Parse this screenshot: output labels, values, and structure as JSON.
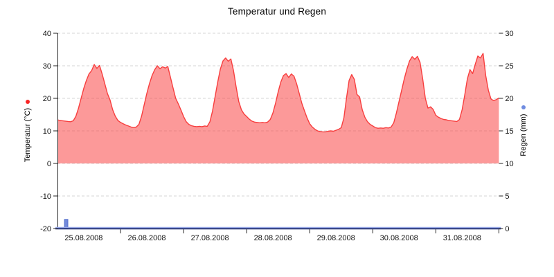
{
  "chart_data": {
    "type": "area+bar",
    "title": "Temperatur und Regen",
    "x_axis": {
      "labels": [
        "25.08.2008",
        "26.08.2008",
        "27.08.2008",
        "28.08.2008",
        "29.08.2008",
        "30.08.2008",
        "31.08.2008"
      ],
      "start": "25.08.2008 00:00",
      "end": "01.09.2008 00:00",
      "tick_every_hours": 24
    },
    "left_axis": {
      "label": "Temperatur (°C)",
      "min": -20,
      "max": 40,
      "ticks": [
        40,
        30,
        20,
        10,
        0,
        -10,
        -20
      ]
    },
    "right_axis": {
      "label": "Regen (mm)",
      "min": 0,
      "max": 30,
      "ticks": [
        30,
        25,
        20,
        15,
        10,
        5,
        0
      ]
    },
    "grid": {
      "show": true,
      "style": "dashed",
      "color": "#d6d6d6"
    },
    "series": [
      {
        "name": "Temperatur",
        "type": "area",
        "axis": "left",
        "unit": "°C",
        "line_color": "#f73e3e",
        "fill_color": "rgba(250,70,70,0.55)",
        "marker_color": "#f92525",
        "fill_base_value": 0,
        "step_hours": 1,
        "values": [
          13.4,
          13.2,
          13.1,
          13.0,
          12.9,
          12.8,
          13.1,
          14.5,
          17.0,
          20.0,
          23.0,
          25.5,
          27.5,
          28.5,
          30.4,
          29.2,
          30.1,
          27.5,
          24.5,
          21.5,
          19.5,
          16.5,
          14.5,
          13.2,
          12.6,
          12.2,
          11.8,
          11.5,
          11.2,
          11.0,
          11.2,
          12.0,
          14.5,
          18.0,
          21.5,
          24.5,
          27.0,
          28.8,
          30.0,
          29.1,
          29.7,
          29.3,
          29.8,
          26.5,
          23.2,
          20.0,
          18.3,
          16.4,
          14.4,
          12.8,
          12.0,
          11.6,
          11.4,
          11.3,
          11.4,
          11.3,
          11.5,
          11.4,
          12.8,
          16.0,
          20.5,
          25.0,
          29.0,
          31.5,
          32.4,
          31.4,
          32.1,
          28.5,
          23.5,
          19.0,
          16.5,
          15.2,
          14.4,
          13.6,
          13.0,
          12.7,
          12.6,
          12.5,
          12.6,
          12.5,
          12.7,
          13.5,
          15.5,
          18.5,
          22.0,
          25.0,
          27.0,
          27.6,
          26.4,
          27.5,
          26.8,
          24.5,
          21.5,
          18.5,
          16.2,
          14.0,
          12.2,
          11.2,
          10.5,
          10.0,
          9.8,
          9.7,
          9.7,
          9.9,
          10.0,
          9.9,
          10.2,
          10.5,
          11.0,
          14.0,
          20.0,
          25.5,
          27.3,
          25.8,
          21.2,
          20.4,
          16.5,
          14.2,
          12.8,
          12.0,
          11.5,
          11.0,
          10.8,
          10.9,
          10.8,
          11.0,
          10.9,
          11.2,
          12.5,
          15.5,
          19.0,
          22.5,
          26.0,
          29.0,
          31.5,
          32.8,
          32.0,
          32.9,
          31.0,
          26.0,
          20.0,
          17.0,
          17.4,
          16.6,
          14.8,
          14.2,
          13.8,
          13.5,
          13.4,
          13.2,
          13.1,
          13.0,
          12.9,
          13.5,
          16.5,
          21.0,
          26.0,
          28.8,
          27.6,
          30.5,
          33.0,
          32.4,
          33.8,
          27.0,
          22.5,
          19.8,
          19.3,
          19.6,
          20.1
        ]
      },
      {
        "name": "Regen",
        "type": "bar",
        "axis": "right",
        "unit": "mm",
        "color": "#7289db",
        "border_color": "#5570cc",
        "marker_color": "#6f8ce0",
        "bar_width_hours": 1.3,
        "points": [
          {
            "hour": 3.3,
            "value": 1.4
          }
        ]
      }
    ]
  }
}
